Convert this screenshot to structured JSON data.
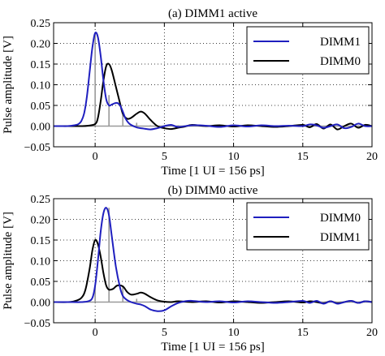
{
  "chart_data": [
    {
      "type": "line",
      "title": "(a) DIMM1 active",
      "xlabel": "Time [1 UI = 156 ps]",
      "ylabel": "Pulse amplitude [V]",
      "xlim": [
        -3,
        20
      ],
      "ylim": [
        -0.05,
        0.25
      ],
      "xticks": [
        "0",
        "5",
        "10",
        "15",
        "20"
      ],
      "yticks": [
        "−0.05",
        "0.00",
        "0.05",
        "0.10",
        "0.15",
        "0.20",
        "0.25"
      ],
      "grid": true,
      "legend_position": "top-right",
      "series": [
        {
          "name": "DIMM1",
          "color": "#1f1fbf",
          "x": [
            -3,
            -2.5,
            -2,
            -1.5,
            -1.2,
            -1,
            -0.8,
            -0.6,
            -0.4,
            -0.2,
            0,
            0.2,
            0.4,
            0.6,
            0.8,
            1.0,
            1.2,
            1.4,
            1.6,
            1.8,
            2.0,
            2.2,
            2.5,
            3.0,
            3.5,
            4.0,
            4.5,
            5.0,
            5.5,
            6.0,
            7.0,
            8.0,
            9.0,
            10.0,
            11.0,
            12.0,
            13.0,
            14.0,
            15.0,
            15.5,
            16.0,
            16.5,
            17.0,
            17.5,
            18.0,
            18.5,
            19.0,
            19.5,
            20.0
          ],
          "y": [
            0.0,
            0.0,
            0.0,
            0.002,
            0.005,
            0.012,
            0.03,
            0.07,
            0.13,
            0.19,
            0.225,
            0.215,
            0.17,
            0.11,
            0.065,
            0.05,
            0.052,
            0.055,
            0.056,
            0.05,
            0.035,
            0.018,
            0.005,
            -0.003,
            -0.006,
            -0.008,
            -0.005,
            0.0,
            0.003,
            -0.002,
            0.002,
            0.001,
            -0.002,
            0.002,
            -0.001,
            0.002,
            0.0,
            0.001,
            0.0,
            0.004,
            0.002,
            -0.004,
            0.0,
            0.004,
            -0.005,
            -0.002,
            0.006,
            0.0,
            0.0
          ]
        },
        {
          "name": "DIMM0",
          "color": "#000000",
          "x": [
            -3,
            -2,
            -1,
            -0.5,
            0,
            0.2,
            0.4,
            0.6,
            0.8,
            1.0,
            1.2,
            1.5,
            1.8,
            2.0,
            2.3,
            2.6,
            3.0,
            3.3,
            3.6,
            4.0,
            4.5,
            5.0,
            5.5,
            6.0,
            6.5,
            7.0,
            8.0,
            9.0,
            10.0,
            11.0,
            12.0,
            13.0,
            14.0,
            15.0,
            15.5,
            16.0,
            16.5,
            17.0,
            17.5,
            18.0,
            18.5,
            19.0,
            19.5,
            20.0
          ],
          "y": [
            0.0,
            0.0,
            0.0,
            0.001,
            0.005,
            0.02,
            0.06,
            0.11,
            0.145,
            0.15,
            0.135,
            0.095,
            0.055,
            0.03,
            0.018,
            0.02,
            0.03,
            0.035,
            0.03,
            0.015,
            0.0,
            -0.005,
            -0.007,
            -0.004,
            -0.001,
            0.003,
            0.0,
            0.002,
            -0.001,
            0.002,
            0.0,
            -0.002,
            0.0,
            0.003,
            -0.003,
            0.005,
            -0.006,
            0.004,
            -0.008,
            0.0,
            0.006,
            -0.004,
            0.003,
            0.0
          ]
        }
      ],
      "stems": {
        "color": "#999999",
        "x": [
          0,
          1,
          2,
          3,
          4,
          5,
          6,
          7,
          8,
          9,
          10,
          11,
          12,
          13,
          14,
          15,
          16,
          17,
          18,
          19,
          20
        ],
        "y": [
          0.225,
          0.075,
          0.035,
          0.008,
          0.002,
          0.0,
          0.002,
          0.001,
          0.001,
          0.001,
          0.0,
          0.001,
          0.001,
          0.0,
          0.001,
          0.0,
          0.002,
          0.001,
          0.001,
          0.002,
          0.0
        ]
      }
    },
    {
      "type": "line",
      "title": "(b) DIMM0 active",
      "xlabel": "Time [1 UI = 156 ps]",
      "ylabel": "Pulse amplitude [V]",
      "xlim": [
        -3,
        20
      ],
      "ylim": [
        -0.05,
        0.25
      ],
      "xticks": [
        "0",
        "5",
        "10",
        "15",
        "20"
      ],
      "yticks": [
        "−0.05",
        "0.00",
        "0.05",
        "0.10",
        "0.15",
        "0.20",
        "0.25"
      ],
      "grid": true,
      "legend_position": "top-right",
      "series": [
        {
          "name": "DIMM0",
          "color": "#1f1fbf",
          "x": [
            -3,
            -2,
            -1,
            -0.5,
            -0.2,
            0,
            0.2,
            0.4,
            0.6,
            0.8,
            1.0,
            1.2,
            1.5,
            1.8,
            2.0,
            2.3,
            2.6,
            3.0,
            3.3,
            3.6,
            4.0,
            4.5,
            5.0,
            5.5,
            6.0,
            6.5,
            7.0,
            8.0,
            9.0,
            10.0,
            11.0,
            12.0,
            13.0,
            14.0,
            15.0,
            15.5,
            16.0,
            16.5,
            17.0,
            17.5,
            18.0,
            18.5,
            19.0,
            19.5,
            20.0
          ],
          "y": [
            0.0,
            0.0,
            0.0,
            0.002,
            0.01,
            0.04,
            0.1,
            0.17,
            0.215,
            0.228,
            0.21,
            0.16,
            0.085,
            0.035,
            0.015,
            0.005,
            0.0,
            -0.004,
            -0.006,
            -0.01,
            -0.018,
            -0.022,
            -0.02,
            -0.01,
            -0.002,
            0.002,
            0.003,
            0.0,
            0.002,
            -0.001,
            0.002,
            0.0,
            -0.002,
            0.0,
            0.003,
            -0.002,
            0.003,
            -0.004,
            0.002,
            -0.004,
            0.0,
            0.003,
            -0.002,
            0.002,
            0.0
          ]
        },
        {
          "name": "DIMM1",
          "color": "#000000",
          "x": [
            -3,
            -2,
            -1.5,
            -1.0,
            -0.7,
            -0.4,
            -0.2,
            0,
            0.2,
            0.4,
            0.6,
            0.8,
            1.0,
            1.3,
            1.6,
            2.0,
            2.3,
            2.6,
            3.0,
            3.3,
            3.6,
            4.0,
            4.5,
            5.0,
            5.5,
            6.0,
            7.0,
            8.0,
            9.0,
            10.0,
            11.0,
            12.0,
            13.0,
            14.0,
            15.0,
            15.5,
            16.0,
            16.5,
            17.0,
            17.5,
            18.0,
            18.5,
            19.0,
            19.5,
            20.0
          ],
          "y": [
            0.0,
            0.0,
            0.002,
            0.01,
            0.03,
            0.08,
            0.125,
            0.15,
            0.14,
            0.11,
            0.07,
            0.04,
            0.03,
            0.032,
            0.04,
            0.038,
            0.025,
            0.018,
            0.02,
            0.023,
            0.02,
            0.012,
            0.004,
            0.001,
            0.0,
            0.002,
            0.0,
            0.002,
            -0.001,
            0.002,
            0.0,
            -0.002,
            0.0,
            0.002,
            -0.001,
            0.002,
            0.0,
            -0.003,
            0.002,
            -0.003,
            0.0,
            0.003,
            -0.002,
            0.002,
            0.0
          ]
        }
      ],
      "stems": {
        "color": "#999999",
        "x": [
          0,
          1,
          2,
          3,
          4,
          5,
          6,
          7,
          8,
          9,
          10,
          11,
          12,
          13,
          14,
          15,
          16,
          17,
          18,
          19,
          20
        ],
        "y": [
          0.04,
          0.228,
          0.04,
          0.008,
          0.002,
          0.0,
          0.001,
          0.001,
          0.001,
          0.001,
          0.0,
          0.001,
          0.001,
          0.0,
          0.001,
          0.0,
          0.001,
          0.001,
          0.001,
          0.001,
          0.0
        ]
      }
    }
  ]
}
